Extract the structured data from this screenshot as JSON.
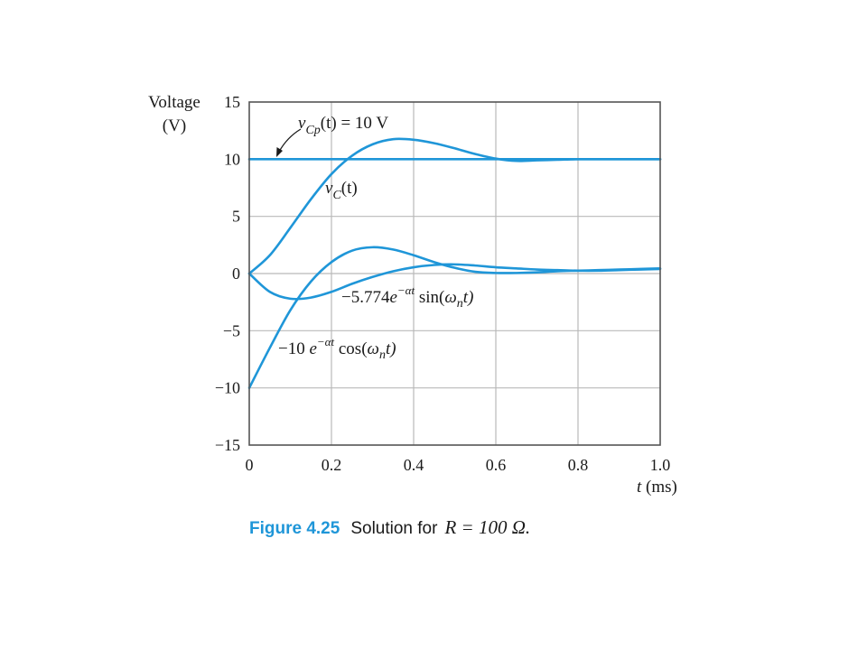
{
  "chart_data": {
    "type": "line",
    "title": "",
    "xlabel": {
      "var": "t",
      "unit": " (ms)"
    },
    "ylabel": {
      "line1": "Voltage",
      "line2": "(V)"
    },
    "xlim": [
      0,
      1.0
    ],
    "ylim": [
      -15,
      15
    ],
    "xticks": [
      0,
      0.2,
      0.4,
      0.6,
      0.8,
      1.0
    ],
    "xtick_labels": [
      "0",
      "0.2",
      "0.4",
      "0.6",
      "0.8",
      "1.0"
    ],
    "yticks": [
      15,
      10,
      5,
      0,
      -5,
      -10,
      -15
    ],
    "ytick_labels": [
      "15",
      "10",
      "5",
      "0",
      "−5",
      "−10",
      "−15"
    ],
    "grid": true,
    "series": [
      {
        "key": "vcp",
        "x": [
          0,
          0.2,
          0.4,
          0.6,
          0.8,
          1.0
        ],
        "y": [
          10,
          10,
          10,
          10,
          10,
          10
        ]
      },
      {
        "key": "vc",
        "x": [
          0,
          0.05,
          0.1,
          0.15,
          0.2,
          0.25,
          0.3,
          0.35,
          0.4,
          0.45,
          0.5,
          0.55,
          0.6,
          0.65,
          0.7,
          0.75,
          0.8,
          0.85,
          0.9,
          0.95,
          1.0
        ],
        "y": [
          0,
          1.6,
          4.0,
          6.5,
          8.7,
          10.3,
          11.3,
          11.75,
          11.7,
          11.4,
          10.95,
          10.45,
          10.05,
          9.85,
          9.9,
          9.95,
          10.0,
          10.0,
          10.0,
          10.0,
          10.0
        ]
      },
      {
        "key": "sin",
        "x": [
          0,
          0.05,
          0.1,
          0.15,
          0.2,
          0.25,
          0.3,
          0.35,
          0.4,
          0.45,
          0.5,
          0.55,
          0.6,
          0.65,
          0.7,
          0.75,
          0.8,
          0.85,
          0.9,
          0.95,
          1.0
        ],
        "y": [
          0,
          -1.6,
          -2.2,
          -2.1,
          -1.6,
          -0.9,
          -0.3,
          0.2,
          0.55,
          0.75,
          0.8,
          0.7,
          0.55,
          0.45,
          0.35,
          0.3,
          0.25,
          0.25,
          0.3,
          0.35,
          0.4
        ]
      },
      {
        "key": "cos",
        "x": [
          0,
          0.05,
          0.1,
          0.15,
          0.2,
          0.25,
          0.3,
          0.35,
          0.4,
          0.45,
          0.5,
          0.55,
          0.6,
          0.65,
          0.7,
          0.75,
          0.8,
          0.85,
          0.9,
          0.95,
          1.0
        ],
        "y": [
          -10,
          -6.5,
          -3.2,
          -0.7,
          1.0,
          2.0,
          2.3,
          2.1,
          1.6,
          1.0,
          0.5,
          0.15,
          0.05,
          0.05,
          0.1,
          0.2,
          0.25,
          0.3,
          0.35,
          0.4,
          0.45
        ]
      }
    ],
    "annotations": {
      "vcp": {
        "v": "v",
        "sub": "Cp",
        "rest": "(t) = 10 V"
      },
      "vc": {
        "v": "v",
        "sub": "C",
        "rest": "(t)"
      },
      "sin": {
        "coef": "−5.774",
        "e": "e",
        "exp": "−αt",
        "fn": " sin(",
        "w": "ω",
        "wsub": "n",
        "arg": "t)"
      },
      "cos": {
        "coef": "−10 ",
        "e": "e",
        "exp": "−αt",
        "fn": " cos(",
        "w": "ω",
        "wsub": "n",
        "arg": "t)"
      }
    },
    "color": "#1f96d8"
  },
  "caption": {
    "label": "Figure 4.25",
    "text": "Solution for",
    "math": "R = 100 Ω."
  }
}
